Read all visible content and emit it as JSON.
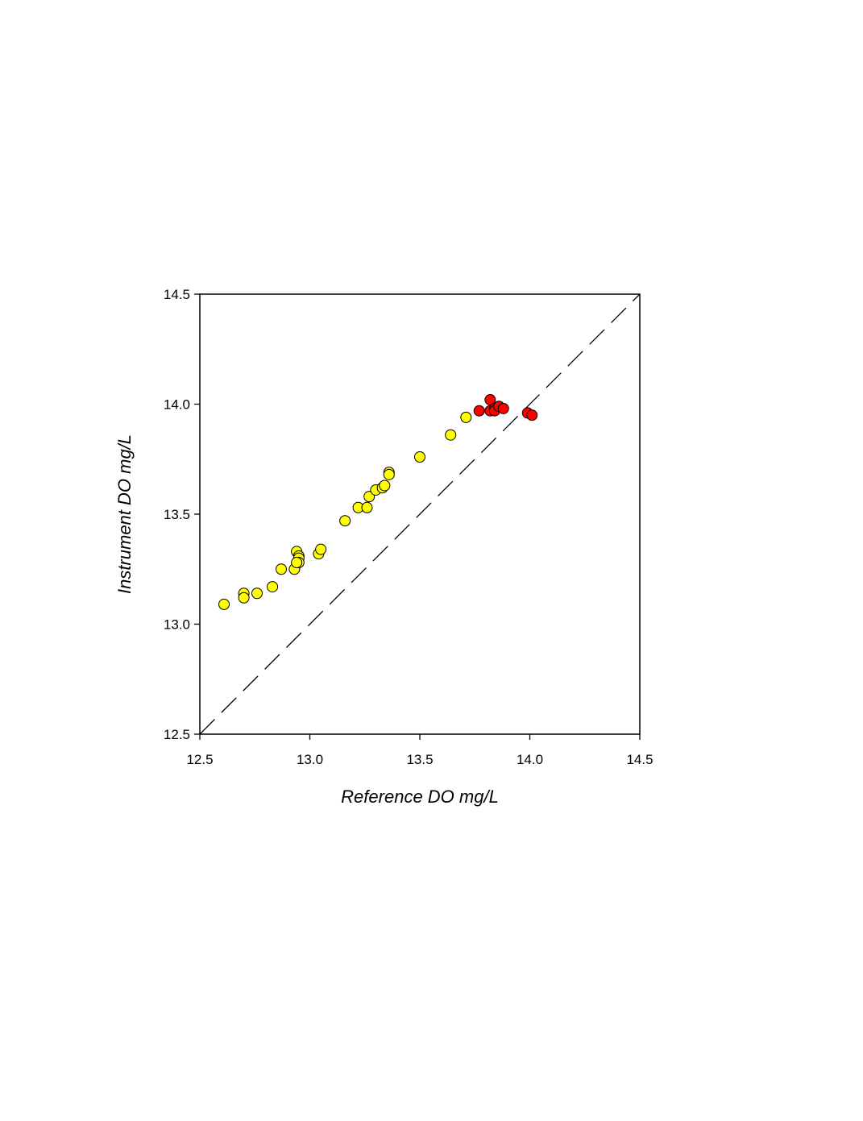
{
  "chart_data": {
    "type": "scatter",
    "x_label": "Reference DO mg/L",
    "y_label": "Instrument DO mg/L",
    "xlim": [
      12.5,
      14.5
    ],
    "ylim": [
      12.5,
      14.5
    ],
    "xticks": [
      12.5,
      {
        "value": 13,
        "label": "13.0"
      },
      13.5,
      {
        "value": 14,
        "label": "14.0"
      },
      14.5
    ],
    "yticks": [
      12.5,
      {
        "value": 13,
        "label": "13.0"
      },
      13.5,
      {
        "value": 14,
        "label": "14.0"
      },
      14.5
    ],
    "series": [
      {
        "color": "#ffff00",
        "x": [
          12.61,
          12.7,
          12.7,
          12.76,
          12.83,
          12.87,
          12.93,
          12.94,
          12.95,
          12.95,
          12.95,
          12.94,
          13.04,
          13.05,
          13.16,
          13.22,
          13.26,
          13.27,
          13.3,
          13.33,
          13.34,
          13.36,
          13.36,
          13.5,
          13.64,
          13.71
        ],
        "values": [
          13.09,
          13.14,
          13.12,
          13.14,
          13.17,
          13.25,
          13.25,
          13.33,
          13.31,
          13.3,
          13.28,
          13.28,
          13.32,
          13.34,
          13.47,
          13.53,
          13.53,
          13.58,
          13.61,
          13.62,
          13.63,
          13.69,
          13.68,
          13.76,
          13.86,
          13.94
        ]
      },
      {
        "color": "#ff0000",
        "x": [
          13.77,
          13.82,
          13.82,
          13.84,
          13.84,
          13.86,
          13.88,
          13.99,
          14.01
        ],
        "values": [
          13.97,
          14.02,
          13.97,
          13.98,
          13.97,
          13.99,
          13.98,
          13.96,
          13.95
        ]
      }
    ]
  }
}
